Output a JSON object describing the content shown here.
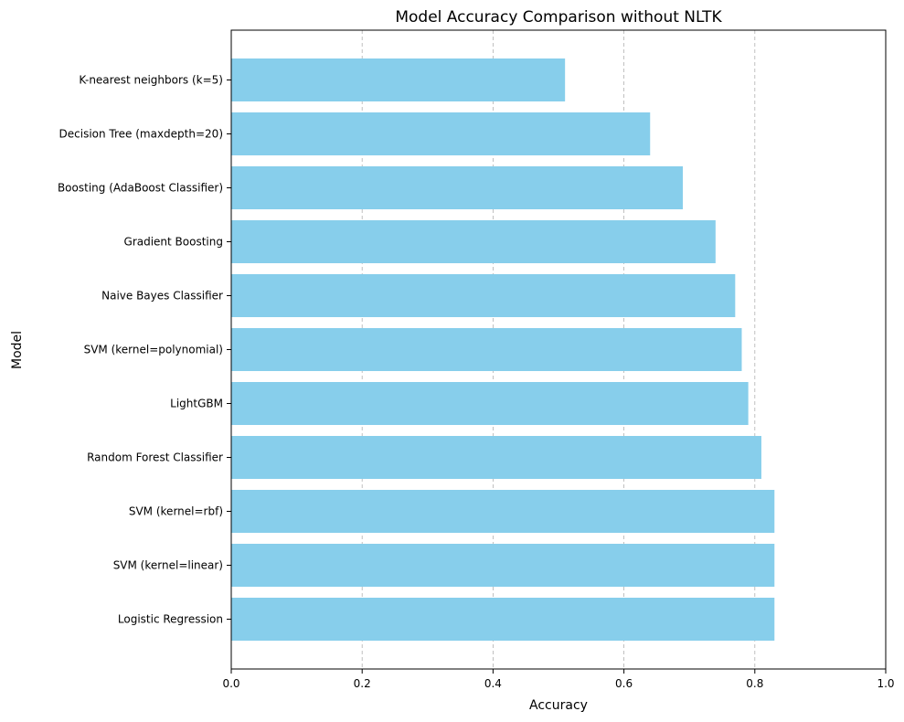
{
  "chart_data": {
    "type": "bar",
    "orientation": "horizontal",
    "title": "Model Accuracy Comparison without NLTK",
    "xlabel": "Accuracy",
    "ylabel": "Model",
    "xlim": [
      0,
      1.0
    ],
    "xticks": [
      0.0,
      0.2,
      0.4,
      0.6,
      0.8,
      1.0
    ],
    "xtick_labels": [
      "0.0",
      "0.2",
      "0.4",
      "0.6",
      "0.8",
      "1.0"
    ],
    "grid": "x-dashed",
    "bar_color": "#87CEEB",
    "categories": [
      "Logistic Regression",
      "SVM (kernel=linear)",
      "SVM (kernel=rbf)",
      "Random Forest Classifier",
      "LightGBM",
      "SVM (kernel=polynomial)",
      "Naive Bayes Classifier",
      "Gradient Boosting",
      "Boosting (AdaBoost Classifier)",
      "Decision Tree (maxdepth=20)",
      "K-nearest neighbors (k=5)"
    ],
    "values": [
      0.83,
      0.83,
      0.83,
      0.81,
      0.79,
      0.78,
      0.77,
      0.74,
      0.69,
      0.64,
      0.51
    ]
  }
}
